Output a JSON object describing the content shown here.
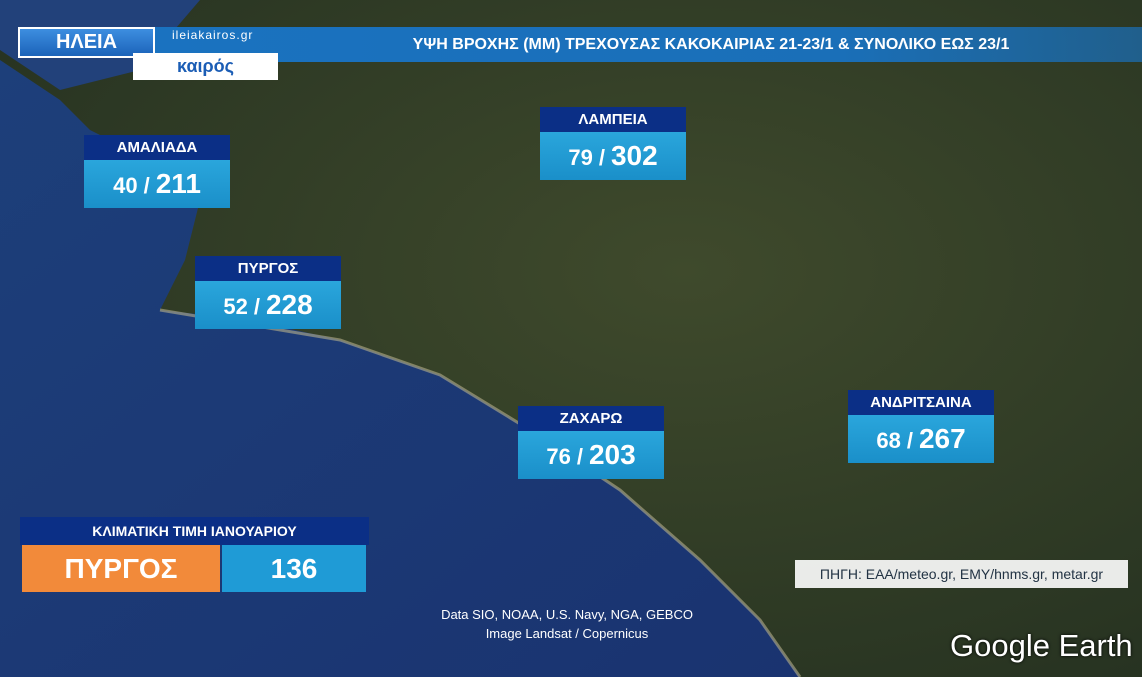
{
  "header": {
    "region": "ΗΛΕΙΑ",
    "site": "ileiakairos.gr",
    "brand": "καιρός",
    "title": "ΥΨΗ ΒΡΟΧΗΣ (ΜΜ) ΤΡΕΧΟΥΣΑΣ ΚΑΚΟΚΑΙΡΙΑΣ 21-23/1 & ΣΥΝΟΛΙΚΟ ΕΩΣ 23/1"
  },
  "separator": "/",
  "stations": [
    {
      "name": "ΑΜΑΛΙΑΔΑ",
      "current": 40,
      "total": 211
    },
    {
      "name": "ΛΑΜΠΕΙΑ",
      "current": 79,
      "total": 302
    },
    {
      "name": "ΠΥΡΓΟΣ",
      "current": 52,
      "total": 228
    },
    {
      "name": "ΖΑΧΑΡΩ",
      "current": 76,
      "total": 203
    },
    {
      "name": "ΑΝΔΡΙΤΣΑΙΝΑ",
      "current": 68,
      "total": 267
    }
  ],
  "climate": {
    "title": "ΚΛΙΜΑΤΙΚΗ ΤΙΜΗ ΙΑΝΟΥΑΡΙΟΥ",
    "station": "ΠΥΡΓΟΣ",
    "value": 136
  },
  "source": "ΠΗΓΗ: ΕΑΑ/meteo.gr, ΕΜΥ/hnms.gr, metar.gr",
  "attribution": [
    "Data SIO, NOAA, U.S. Navy, NGA, GEBCO",
    "Image Landsat / Copernicus"
  ],
  "logo": "Google Earth"
}
